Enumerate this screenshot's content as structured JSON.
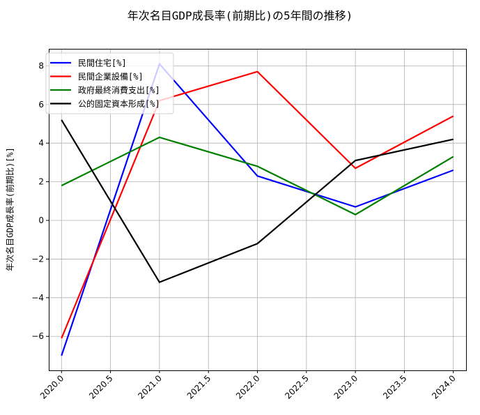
{
  "chart_data": {
    "type": "line",
    "title": "年次名目GDP成長率(前期比)の5年間の推移)",
    "xlabel": "",
    "ylabel": "年次名目GDP成長率(前期比)[%]",
    "x": [
      2020,
      2021,
      2022,
      2023,
      2024
    ],
    "xlim": [
      2019.87,
      2024.13
    ],
    "ylim": [
      -7.76,
      8.88
    ],
    "xticks": [
      "2020.0",
      "2020.5",
      "2021.0",
      "2021.5",
      "2022.0",
      "2022.5",
      "2023.0",
      "2023.5",
      "2024.0"
    ],
    "yticks": [
      "−6",
      "−4",
      "−2",
      "0",
      "2",
      "4",
      "6",
      "8"
    ],
    "grid": true,
    "legend_position": "upper left",
    "series": [
      {
        "name": "民間住宅[%]",
        "color": "#0000ff",
        "values": [
          -7.0,
          8.1,
          2.3,
          0.7,
          2.6
        ]
      },
      {
        "name": "民間企業設備[%]",
        "color": "#ff0000",
        "values": [
          -6.1,
          6.2,
          7.7,
          2.7,
          5.4
        ]
      },
      {
        "name": "政府最終消費支出[%]",
        "color": "#008000",
        "values": [
          1.8,
          4.3,
          2.8,
          0.3,
          3.3
        ]
      },
      {
        "name": "公的固定資本形成[%]",
        "color": "#000000",
        "values": [
          5.2,
          -3.2,
          -1.2,
          3.1,
          4.2
        ]
      }
    ]
  }
}
